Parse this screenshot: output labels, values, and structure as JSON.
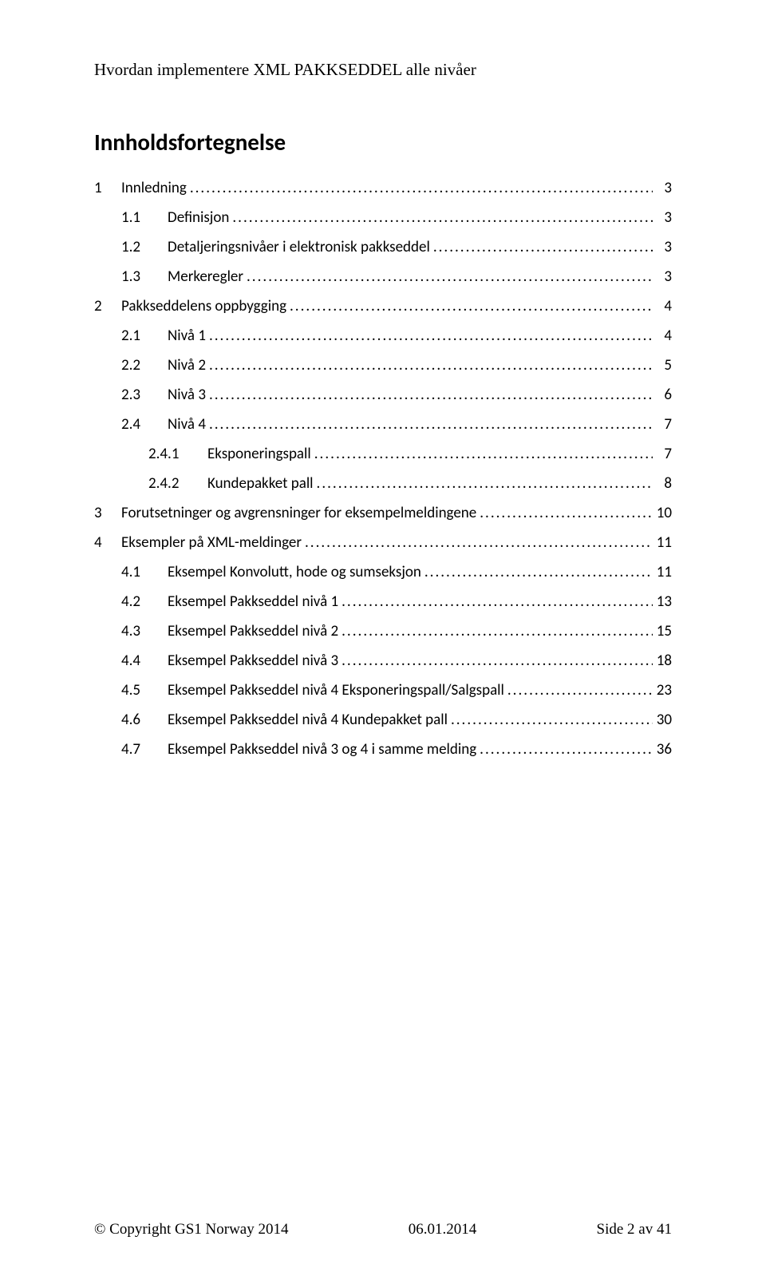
{
  "header": {
    "text": "Hvordan implementere XML PAKKSEDDEL alle nivåer"
  },
  "toc": {
    "title": "Innholdsfortegnelse",
    "entries": [
      {
        "level": 0,
        "num": "1",
        "label": "Innledning",
        "page": "3"
      },
      {
        "level": 1,
        "num": "1.1",
        "label": "Definisjon",
        "page": "3"
      },
      {
        "level": 1,
        "num": "1.2",
        "label": "Detaljeringsnivåer i elektronisk pakkseddel",
        "page": "3"
      },
      {
        "level": 1,
        "num": "1.3",
        "label": "Merkeregler",
        "page": "3"
      },
      {
        "level": 0,
        "num": "2",
        "label": "Pakkseddelens oppbygging",
        "page": "4"
      },
      {
        "level": 1,
        "num": "2.1",
        "label": "Nivå 1",
        "page": "4"
      },
      {
        "level": 1,
        "num": "2.2",
        "label": "Nivå 2",
        "page": "5"
      },
      {
        "level": 1,
        "num": "2.3",
        "label": "Nivå 3",
        "page": "6"
      },
      {
        "level": 1,
        "num": "2.4",
        "label": "Nivå 4",
        "page": "7"
      },
      {
        "level": 2,
        "num": "2.4.1",
        "label": "Eksponeringspall",
        "page": "7"
      },
      {
        "level": 2,
        "num": "2.4.2",
        "label": "Kundepakket pall",
        "page": "8"
      },
      {
        "level": 0,
        "num": "3",
        "label": "Forutsetninger og avgrensninger for eksempelmeldingene",
        "page": "10"
      },
      {
        "level": 0,
        "num": "4",
        "label": "Eksempler på XML-meldinger",
        "page": "11"
      },
      {
        "level": 1,
        "num": "4.1",
        "label": "Eksempel Konvolutt, hode og sumseksjon",
        "page": "11"
      },
      {
        "level": 1,
        "num": "4.2",
        "label": "Eksempel Pakkseddel nivå 1",
        "page": "13"
      },
      {
        "level": 1,
        "num": "4.3",
        "label": "Eksempel Pakkseddel nivå 2",
        "page": "15"
      },
      {
        "level": 1,
        "num": "4.4",
        "label": "Eksempel Pakkseddel nivå 3",
        "page": "18"
      },
      {
        "level": 1,
        "num": "4.5",
        "label": "Eksempel Pakkseddel nivå 4 Eksponeringspall/Salgspall",
        "page": "23"
      },
      {
        "level": 1,
        "num": "4.6",
        "label": "Eksempel Pakkseddel nivå 4 Kundepakket pall",
        "page": "30"
      },
      {
        "level": 1,
        "num": "4.7",
        "label": "Eksempel Pakkseddel nivå 3 og 4 i samme melding",
        "page": "36"
      }
    ]
  },
  "footer": {
    "left": "© Copyright GS1 Norway 2014",
    "center": "06.01.2014",
    "right": "Side 2 av 41"
  },
  "colors": {
    "text": "#000000",
    "background": "#ffffff"
  },
  "typography": {
    "header_font": "Times New Roman",
    "header_size_pt": 16,
    "toc_title_font": "Calibri",
    "toc_title_size_pt": 22,
    "toc_title_weight": "bold",
    "toc_body_font": "Calibri",
    "toc_body_size_pt": 14,
    "footer_font": "Times New Roman",
    "footer_size_pt": 14
  }
}
